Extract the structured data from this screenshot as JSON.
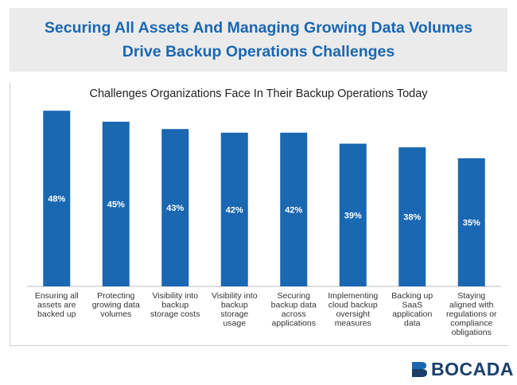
{
  "header": {
    "title": "Securing All Assets And Managing Growing Data Volumes Drive Backup Operations Challenges"
  },
  "chart_data": {
    "type": "bar",
    "title": "Challenges Organizations Face In Their Backup Operations Today",
    "categories": [
      "Ensuring all assets are backed up",
      "Protecting growing data volumes",
      "Visibility into backup storage costs",
      "Visibility into backup storage usage",
      "Securing backup data across applications",
      "Implementing cloud backup oversight measures",
      "Backing up SaaS application data",
      "Staying aligned with regulations or compliance obligations"
    ],
    "category_lines": [
      [
        "Ensuring all",
        "assets are",
        "backed up"
      ],
      [
        "Protecting",
        "growing data",
        "volumes"
      ],
      [
        "Visibility into",
        "backup",
        "storage costs"
      ],
      [
        "Visibility into",
        "backup",
        "storage",
        "usage"
      ],
      [
        "Securing",
        "backup data",
        "across",
        "applications"
      ],
      [
        "Implementing",
        "cloud backup",
        "oversight",
        "measures"
      ],
      [
        "Backing up",
        "SaaS",
        "application",
        "data"
      ],
      [
        "Staying",
        "aligned with",
        "regulations or",
        "compliance",
        "obligations"
      ]
    ],
    "values": [
      48,
      45,
      43,
      42,
      42,
      39,
      38,
      35
    ],
    "data_labels": [
      "48%",
      "45%",
      "43%",
      "42%",
      "42%",
      "39%",
      "38%",
      "35%"
    ],
    "ylim": [
      0,
      50
    ],
    "grid": false,
    "legend": "none",
    "bar_color": "#1a67b2",
    "label_color": "#ffffff"
  },
  "brand": {
    "logo_text": "BOCADA",
    "logo_color": "#1a3f6b",
    "icon": "bocada-logo-mark"
  }
}
